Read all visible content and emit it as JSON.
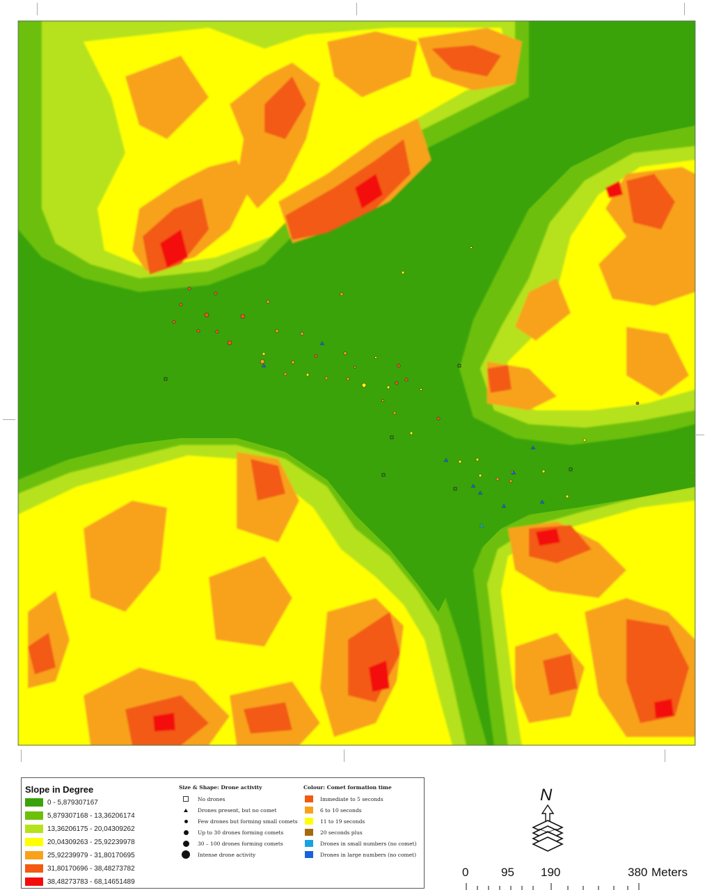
{
  "slope_legend": {
    "title": "Slope in Degree",
    "classes": [
      {
        "label": "0 - 5,879307167",
        "color": "#3aa30a"
      },
      {
        "label": "5,879307168 - 13,36206174",
        "color": "#6cc00a"
      },
      {
        "label": "13,36206175 - 20,04309262",
        "color": "#b5e21a"
      },
      {
        "label": "20,04309263 - 25,92239978",
        "color": "#ffff00"
      },
      {
        "label": "25,92239979 - 31,80170695",
        "color": "#f8a21c"
      },
      {
        "label": "31,80170696 - 38,48273782",
        "color": "#f25a12"
      },
      {
        "label": "38,48273783 - 68,14651489",
        "color": "#f40c0c"
      }
    ]
  },
  "size_legend": {
    "title": "Size & Shape: Drone activity",
    "items": [
      {
        "label": "No drones",
        "symbol": "square"
      },
      {
        "label": "Drones present, but no comet",
        "symbol": "triangle"
      },
      {
        "label": "Few drones but forming small comets",
        "symbol": "dot-xs"
      },
      {
        "label": "Up to 30 drones forming comets",
        "symbol": "dot-s"
      },
      {
        "label": "30 – 100 drones forming comets",
        "symbol": "dot-m"
      },
      {
        "label": "Intense drone activity",
        "symbol": "dot-l"
      }
    ]
  },
  "colour_legend": {
    "title": "Colour: Comet formation time",
    "items": [
      {
        "label": "Immediate to 5 seconds",
        "color": "#f25a12"
      },
      {
        "label": "6 to 10 seconds",
        "color": "#f8a21c"
      },
      {
        "label": "11 to 19 seconds",
        "color": "#ffff00"
      },
      {
        "label": "20 seconds plus",
        "color": "#a8690a"
      },
      {
        "label": "Drones in small numbers (no comet)",
        "color": "#1aa2e0"
      },
      {
        "label": "Drones in large numbers (no comet)",
        "color": "#1a62d8"
      }
    ]
  },
  "scale_bar": {
    "labels": [
      "0",
      "95",
      "190",
      "380"
    ],
    "unit": "Meters"
  },
  "north_arrow": {
    "label": "N"
  },
  "colors": {
    "flat": "#3aa30a",
    "gentle": "#6cc00a",
    "moderate": "#b5e21a",
    "mid": "#ffff00",
    "steep": "#f8a21c",
    "very_steep": "#f25a12",
    "extreme": "#f40c0c"
  },
  "survey_points": [
    {
      "type": "dot",
      "size": "s",
      "color": "orange-red"
    },
    {
      "type": "dot",
      "size": "s",
      "color": "orange"
    },
    {
      "type": "dot",
      "size": "xs",
      "color": "yellow"
    },
    {
      "type": "triangle",
      "color": "blue"
    },
    {
      "type": "square",
      "color": "none"
    }
  ]
}
